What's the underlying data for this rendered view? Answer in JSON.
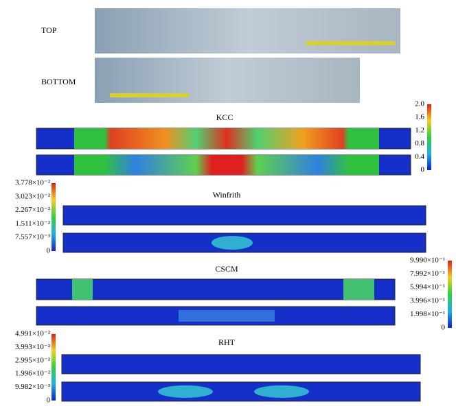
{
  "photos": {
    "top_label": "TOP",
    "bottom_label": "BOTTOM"
  },
  "panels": [
    {
      "title": "KCC",
      "colorbar": [
        "2.0",
        "1.6",
        "1.2",
        "0.8",
        "0.4",
        "0"
      ]
    },
    {
      "title": "Winfrith",
      "colorbar": [
        "3.778×10⁻²",
        "3.023×10⁻²",
        "2.267×10⁻²",
        "1.511×10⁻²",
        "7.557×10⁻³",
        "0"
      ]
    },
    {
      "title": "CSCM",
      "colorbar": [
        "9.990×10⁻¹",
        "7.992×10⁻¹",
        "5.994×10⁻¹",
        "3.996×10⁻¹",
        "1.998×10⁻¹",
        "0"
      ]
    },
    {
      "title": "RHT",
      "colorbar": [
        "4.991×10⁻²",
        "3.993×10⁻²",
        "2.995×10⁻²",
        "1.996×10⁻²",
        "9.982×10⁻³",
        "0"
      ]
    }
  ]
}
